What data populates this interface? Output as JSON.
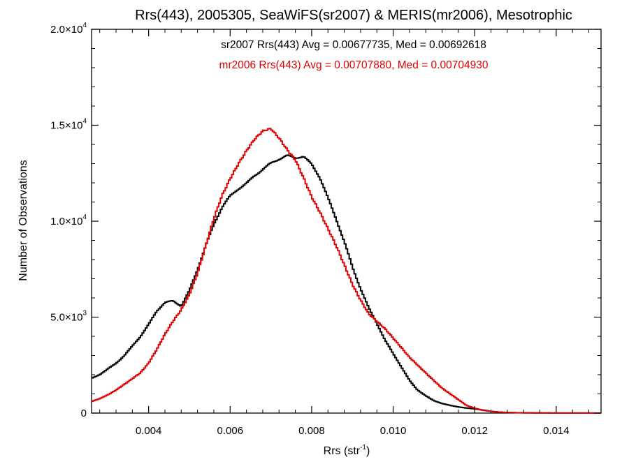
{
  "chart_data": {
    "type": "line",
    "title": "Rrs(443), 2005305, SeaWiFS(sr2007) & MERIS(mr2006), Mesotrophic",
    "xlabel_main": "Rrs (str",
    "xlabel_sup": "-1",
    "xlabel_end": ")",
    "ylabel": "Number of Observations",
    "xlim": [
      0.0026,
      0.0151
    ],
    "ylim": [
      0,
      20000
    ],
    "x_ticks": [
      {
        "value": 0.004,
        "label": "0.004"
      },
      {
        "value": 0.006,
        "label": "0.006"
      },
      {
        "value": 0.008,
        "label": "0.008"
      },
      {
        "value": 0.01,
        "label": "0.010"
      },
      {
        "value": 0.012,
        "label": "0.012"
      },
      {
        "value": 0.014,
        "label": "0.014"
      }
    ],
    "y_ticks": [
      {
        "value": 0,
        "mant": "0",
        "exp": ""
      },
      {
        "value": 5000,
        "mant": "5.0×10",
        "exp": "3"
      },
      {
        "value": 10000,
        "mant": "1.0×10",
        "exp": "4"
      },
      {
        "value": 15000,
        "mant": "1.5×10",
        "exp": "4"
      },
      {
        "value": 20000,
        "mant": "2.0×10",
        "exp": "4"
      }
    ],
    "grid": false,
    "annotations": [
      {
        "text": "sr2007 Rrs(443) Avg = 0.00677735, Med = 0.00692618",
        "color": "#000000"
      },
      {
        "text": "mr2006 Rrs(443) Avg = 0.00707880, Med = 0.00704930",
        "color": "#e00000"
      }
    ],
    "series": [
      {
        "color": "#000000",
        "x": [
          0.0026,
          0.0028,
          0.003,
          0.0032,
          0.0034,
          0.0036,
          0.0038,
          0.004,
          0.0042,
          0.0044,
          0.0046,
          0.0048,
          0.005,
          0.0052,
          0.0054,
          0.0056,
          0.0058,
          0.006,
          0.0062,
          0.0064,
          0.0066,
          0.0068,
          0.007,
          0.0072,
          0.0074,
          0.0076,
          0.0078,
          0.008,
          0.0082,
          0.0084,
          0.0086,
          0.0088,
          0.009,
          0.0092,
          0.0094,
          0.0096,
          0.0098,
          0.01,
          0.0102,
          0.0104,
          0.0106,
          0.0108,
          0.011,
          0.0112,
          0.0114,
          0.0116,
          0.0118,
          0.012,
          0.0122,
          0.0124,
          0.0126,
          0.0128,
          0.013,
          0.0135,
          0.014,
          0.0145,
          0.0151
        ],
        "y": [
          1800,
          2000,
          2300,
          2600,
          3000,
          3500,
          4000,
          4600,
          5300,
          5750,
          5850,
          5600,
          6400,
          7500,
          8700,
          9800,
          10700,
          11300,
          11700,
          12000,
          12400,
          12700,
          13000,
          13200,
          13400,
          13300,
          13400,
          13000,
          12300,
          11200,
          10100,
          8900,
          7600,
          6500,
          5500,
          4700,
          3800,
          3100,
          2400,
          1700,
          1200,
          900,
          650,
          500,
          400,
          320,
          260,
          220,
          160,
          90,
          50,
          30,
          20,
          10,
          5,
          5,
          0
        ]
      },
      {
        "color": "#e00000",
        "x": [
          0.0026,
          0.0028,
          0.003,
          0.0032,
          0.0034,
          0.0036,
          0.0038,
          0.004,
          0.0042,
          0.0044,
          0.0046,
          0.0048,
          0.005,
          0.0052,
          0.0054,
          0.0056,
          0.0058,
          0.006,
          0.0062,
          0.0064,
          0.0066,
          0.0068,
          0.007,
          0.0072,
          0.0074,
          0.0076,
          0.0078,
          0.008,
          0.0082,
          0.0084,
          0.0086,
          0.0088,
          0.009,
          0.0092,
          0.0094,
          0.0096,
          0.0098,
          0.01,
          0.0102,
          0.0104,
          0.0106,
          0.0108,
          0.011,
          0.0112,
          0.0114,
          0.0116,
          0.0118,
          0.012,
          0.0122,
          0.0124,
          0.0126,
          0.0128,
          0.013,
          0.0135,
          0.014,
          0.0145,
          0.0151
        ],
        "y": [
          600,
          750,
          950,
          1200,
          1500,
          1800,
          2100,
          2600,
          3300,
          4100,
          4800,
          5400,
          6200,
          7300,
          8700,
          10100,
          11300,
          12200,
          13000,
          13700,
          14300,
          14700,
          14800,
          14300,
          13700,
          13200,
          12300,
          11300,
          10500,
          9600,
          8700,
          7700,
          6700,
          5900,
          5200,
          4800,
          4400,
          3900,
          3400,
          2900,
          2500,
          2100,
          1700,
          1300,
          1000,
          700,
          400,
          250,
          150,
          90,
          50,
          30,
          20,
          10,
          5,
          5,
          0
        ]
      }
    ]
  }
}
